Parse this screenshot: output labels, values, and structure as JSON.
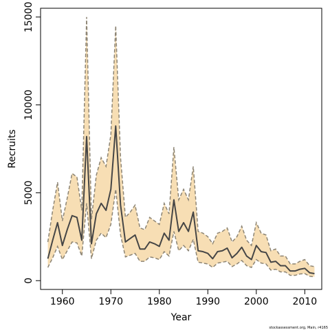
{
  "chart_data": {
    "type": "line",
    "xlabel": "Year",
    "ylabel": "Recruits",
    "footnote": "stockassessment.org, Main, r4165",
    "xlim": [
      1955.5,
      2013.5
    ],
    "ylim": [
      -500,
      15500
    ],
    "x_ticks": [
      1960,
      1970,
      1980,
      1990,
      2000,
      2010
    ],
    "y_ticks": [
      0,
      5000,
      10000,
      15000
    ],
    "grid": false,
    "colors": {
      "band": "#f7deb4",
      "band_edge": "#8c8474",
      "line": "#454545",
      "axis": "#000000"
    },
    "x": [
      1957,
      1958,
      1959,
      1960,
      1961,
      1962,
      1963,
      1964,
      1965,
      1966,
      1967,
      1968,
      1969,
      1970,
      1971,
      1972,
      1973,
      1974,
      1975,
      1976,
      1977,
      1978,
      1979,
      1980,
      1981,
      1982,
      1983,
      1984,
      1985,
      1986,
      1987,
      1988,
      1989,
      1990,
      1991,
      1992,
      1993,
      1994,
      1995,
      1996,
      1997,
      1998,
      1999,
      2000,
      2001,
      2002,
      2003,
      2004,
      2005,
      2006,
      2007,
      2008,
      2009,
      2010,
      2011,
      2012
    ],
    "series": [
      {
        "name": "Estimate",
        "values": [
          1250,
          2300,
          3300,
          2000,
          2900,
          3700,
          3600,
          2300,
          8200,
          2100,
          3800,
          4400,
          4000,
          5200,
          8800,
          4300,
          2200,
          2400,
          2600,
          1800,
          1800,
          2200,
          2100,
          1950,
          2700,
          2300,
          4600,
          2800,
          3300,
          2800,
          3900,
          1700,
          1650,
          1550,
          1250,
          1650,
          1700,
          1850,
          1300,
          1550,
          1900,
          1400,
          1200,
          2000,
          1650,
          1600,
          1050,
          1100,
          850,
          850,
          550,
          550,
          650,
          700,
          450,
          400
        ]
      },
      {
        "name": "Upper",
        "values": [
          2200,
          4000,
          5600,
          3400,
          4700,
          6100,
          5900,
          4000,
          15000,
          3500,
          6000,
          7000,
          6500,
          8300,
          14500,
          7000,
          3600,
          3900,
          4300,
          3000,
          2900,
          3600,
          3400,
          3200,
          4400,
          3800,
          7600,
          4600,
          5200,
          4600,
          6500,
          2800,
          2700,
          2500,
          2100,
          2700,
          2800,
          3000,
          2200,
          2500,
          3100,
          2300,
          2000,
          3300,
          2700,
          2600,
          1700,
          1800,
          1400,
          1400,
          950,
          950,
          1100,
          1200,
          850,
          800
        ]
      },
      {
        "name": "Lower",
        "values": [
          750,
          1300,
          1950,
          1200,
          1700,
          2200,
          2150,
          1400,
          4400,
          1250,
          2300,
          2700,
          2450,
          3200,
          5200,
          2600,
          1350,
          1450,
          1550,
          1100,
          1100,
          1350,
          1300,
          1200,
          1650,
          1400,
          2800,
          1700,
          2000,
          1700,
          2350,
          1050,
          1000,
          950,
          750,
          1000,
          1050,
          1100,
          800,
          950,
          1150,
          850,
          750,
          1200,
          1000,
          950,
          600,
          650,
          500,
          500,
          300,
          300,
          380,
          400,
          250,
          220
        ]
      }
    ]
  }
}
